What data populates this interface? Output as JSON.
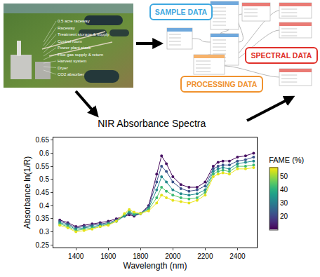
{
  "photo": {
    "labels": [
      "0.5 acre raceway",
      "Raceway",
      "Treatment storage & supply",
      "Control room",
      "Power plant stack",
      "Flue gas supply & return",
      "Harvest system",
      "Dryer",
      "CO2 absorber"
    ]
  },
  "schema": {
    "groups": [
      {
        "label": "SAMPLE DATA",
        "color": "#3ea8e0"
      },
      {
        "label": "SPECTRAL DATA",
        "color": "#e0302a"
      },
      {
        "label": "PROCESSING DATA",
        "color": "#f0922e"
      }
    ]
  },
  "chart_data": {
    "type": "scatter",
    "title": "NIR Absorbance Spectra",
    "x_label": "Wavelength (nm)",
    "y_label": "Absorbance ln(1/R)",
    "x": [
      1300,
      1350,
      1400,
      1450,
      1500,
      1550,
      1600,
      1650,
      1700,
      1730,
      1760,
      1800,
      1850,
      1900,
      1930,
      1960,
      2000,
      2050,
      2100,
      2150,
      2200,
      2250,
      2280,
      2310,
      2350,
      2400,
      2450,
      2500
    ],
    "series": [
      {
        "fame": 12,
        "color": "#46085c",
        "values": [
          0.345,
          0.335,
          0.32,
          0.325,
          0.33,
          0.335,
          0.34,
          0.35,
          0.36,
          0.365,
          0.36,
          0.37,
          0.4,
          0.52,
          0.59,
          0.56,
          0.51,
          0.48,
          0.47,
          0.47,
          0.49,
          0.55,
          0.565,
          0.57,
          0.57,
          0.585,
          0.59,
          0.6
        ]
      },
      {
        "fame": 22,
        "color": "#3b528b",
        "values": [
          0.34,
          0.33,
          0.315,
          0.32,
          0.325,
          0.33,
          0.335,
          0.345,
          0.36,
          0.37,
          0.365,
          0.37,
          0.395,
          0.49,
          0.55,
          0.53,
          0.49,
          0.465,
          0.455,
          0.46,
          0.475,
          0.54,
          0.55,
          0.555,
          0.555,
          0.57,
          0.575,
          0.585
        ]
      },
      {
        "fame": 32,
        "color": "#21908d",
        "values": [
          0.335,
          0.325,
          0.31,
          0.315,
          0.32,
          0.325,
          0.33,
          0.34,
          0.36,
          0.375,
          0.365,
          0.37,
          0.39,
          0.46,
          0.51,
          0.49,
          0.46,
          0.445,
          0.44,
          0.445,
          0.46,
          0.53,
          0.54,
          0.545,
          0.54,
          0.56,
          0.565,
          0.57
        ]
      },
      {
        "fame": 42,
        "color": "#5dc963",
        "values": [
          0.33,
          0.32,
          0.305,
          0.31,
          0.315,
          0.32,
          0.33,
          0.34,
          0.365,
          0.38,
          0.37,
          0.37,
          0.385,
          0.43,
          0.47,
          0.455,
          0.44,
          0.43,
          0.425,
          0.43,
          0.45,
          0.52,
          0.53,
          0.535,
          0.53,
          0.55,
          0.55,
          0.555
        ]
      },
      {
        "fame": 55,
        "color": "#f1e51d",
        "values": [
          0.325,
          0.315,
          0.3,
          0.305,
          0.31,
          0.32,
          0.325,
          0.34,
          0.37,
          0.385,
          0.375,
          0.37,
          0.38,
          0.41,
          0.44,
          0.43,
          0.42,
          0.415,
          0.41,
          0.42,
          0.44,
          0.51,
          0.52,
          0.525,
          0.52,
          0.54,
          0.54,
          0.545
        ]
      }
    ],
    "xlim": [
      1260,
      2520
    ],
    "xticks": [
      1400,
      1600,
      1800,
      2000,
      2200,
      2400
    ],
    "ylim": [
      0.24,
      0.66
    ],
    "yticks": [
      0.25,
      0.3,
      0.35,
      0.4,
      0.45,
      0.5,
      0.55,
      0.6,
      0.65
    ],
    "colorbar": {
      "title": "FAME (%)",
      "range": [
        10,
        57
      ],
      "ticks": [
        20,
        30,
        40,
        50
      ]
    },
    "grid": false,
    "marker": "circle",
    "line_style": "solid"
  }
}
